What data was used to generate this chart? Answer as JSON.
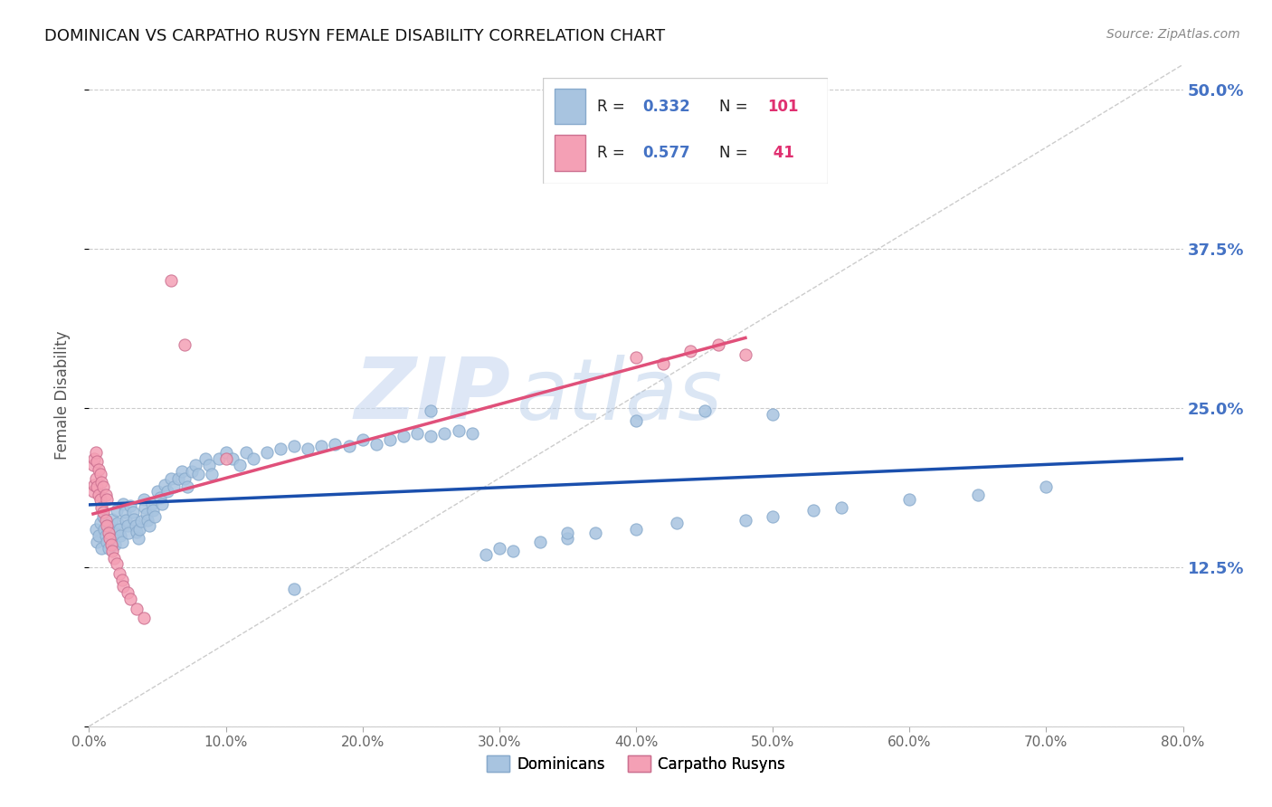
{
  "title": "DOMINICAN VS CARPATHO RUSYN FEMALE DISABILITY CORRELATION CHART",
  "source": "Source: ZipAtlas.com",
  "ylabel": "Female Disability",
  "yticks": [
    0.0,
    0.125,
    0.25,
    0.375,
    0.5
  ],
  "ytick_labels": [
    "",
    "12.5%",
    "25.0%",
    "37.5%",
    "50.0%"
  ],
  "xmin": 0.0,
  "xmax": 0.8,
  "ymin": 0.0,
  "ymax": 0.52,
  "dominican_R": 0.332,
  "dominican_N": 101,
  "carpatho_R": 0.577,
  "carpatho_N": 41,
  "dominican_color": "#a8c4e0",
  "carpatho_color": "#f4a0b5",
  "dominican_line_color": "#1a4fad",
  "carpatho_line_color": "#e0507a",
  "dominican_scatter_x": [
    0.005,
    0.006,
    0.007,
    0.008,
    0.009,
    0.01,
    0.011,
    0.012,
    0.013,
    0.014,
    0.015,
    0.016,
    0.017,
    0.018,
    0.019,
    0.02,
    0.021,
    0.022,
    0.023,
    0.024,
    0.025,
    0.026,
    0.027,
    0.028,
    0.029,
    0.03,
    0.032,
    0.033,
    0.034,
    0.035,
    0.036,
    0.037,
    0.038,
    0.04,
    0.041,
    0.042,
    0.043,
    0.044,
    0.046,
    0.047,
    0.048,
    0.05,
    0.052,
    0.053,
    0.055,
    0.057,
    0.06,
    0.062,
    0.065,
    0.068,
    0.07,
    0.072,
    0.075,
    0.078,
    0.08,
    0.085,
    0.088,
    0.09,
    0.095,
    0.1,
    0.105,
    0.11,
    0.115,
    0.12,
    0.13,
    0.14,
    0.15,
    0.16,
    0.17,
    0.18,
    0.19,
    0.2,
    0.21,
    0.22,
    0.23,
    0.24,
    0.25,
    0.26,
    0.27,
    0.28,
    0.29,
    0.3,
    0.31,
    0.33,
    0.35,
    0.37,
    0.4,
    0.43,
    0.45,
    0.48,
    0.5,
    0.53,
    0.55,
    0.6,
    0.65,
    0.7,
    0.4,
    0.5,
    0.25,
    0.35,
    0.15
  ],
  "dominican_scatter_y": [
    0.155,
    0.145,
    0.15,
    0.16,
    0.14,
    0.165,
    0.155,
    0.15,
    0.145,
    0.14,
    0.158,
    0.148,
    0.163,
    0.153,
    0.143,
    0.17,
    0.16,
    0.155,
    0.15,
    0.145,
    0.175,
    0.168,
    0.162,
    0.158,
    0.152,
    0.173,
    0.168,
    0.163,
    0.158,
    0.153,
    0.148,
    0.155,
    0.161,
    0.178,
    0.172,
    0.167,
    0.162,
    0.158,
    0.175,
    0.17,
    0.165,
    0.185,
    0.18,
    0.175,
    0.19,
    0.185,
    0.195,
    0.188,
    0.195,
    0.2,
    0.195,
    0.188,
    0.2,
    0.205,
    0.198,
    0.21,
    0.205,
    0.198,
    0.21,
    0.215,
    0.21,
    0.205,
    0.215,
    0.21,
    0.215,
    0.218,
    0.22,
    0.218,
    0.22,
    0.222,
    0.22,
    0.225,
    0.222,
    0.225,
    0.228,
    0.23,
    0.228,
    0.23,
    0.232,
    0.23,
    0.135,
    0.14,
    0.138,
    0.145,
    0.148,
    0.152,
    0.155,
    0.16,
    0.248,
    0.162,
    0.165,
    0.17,
    0.172,
    0.178,
    0.182,
    0.188,
    0.24,
    0.245,
    0.248,
    0.152,
    0.108
  ],
  "carpatho_scatter_x": [
    0.003,
    0.004,
    0.005,
    0.006,
    0.007,
    0.008,
    0.009,
    0.01,
    0.012,
    0.013,
    0.014,
    0.015,
    0.016,
    0.017,
    0.018,
    0.02,
    0.022,
    0.024,
    0.025,
    0.028,
    0.03,
    0.035,
    0.04,
    0.003,
    0.004,
    0.005,
    0.006,
    0.007,
    0.008,
    0.009,
    0.01,
    0.012,
    0.013,
    0.4,
    0.42,
    0.44,
    0.46,
    0.48,
    0.1,
    0.07,
    0.06
  ],
  "carpatho_scatter_y": [
    0.185,
    0.19,
    0.195,
    0.188,
    0.182,
    0.178,
    0.172,
    0.168,
    0.162,
    0.158,
    0.152,
    0.148,
    0.143,
    0.138,
    0.132,
    0.128,
    0.12,
    0.115,
    0.11,
    0.105,
    0.1,
    0.092,
    0.085,
    0.205,
    0.21,
    0.215,
    0.208,
    0.202,
    0.198,
    0.192,
    0.188,
    0.182,
    0.178,
    0.29,
    0.285,
    0.295,
    0.3,
    0.292,
    0.21,
    0.3,
    0.35
  ],
  "watermark_zip": "ZIP",
  "watermark_atlas": "atlas",
  "background_color": "#ffffff",
  "grid_color": "#cccccc",
  "legend_R_color": "#4472c4",
  "legend_N_color": "#e03070"
}
